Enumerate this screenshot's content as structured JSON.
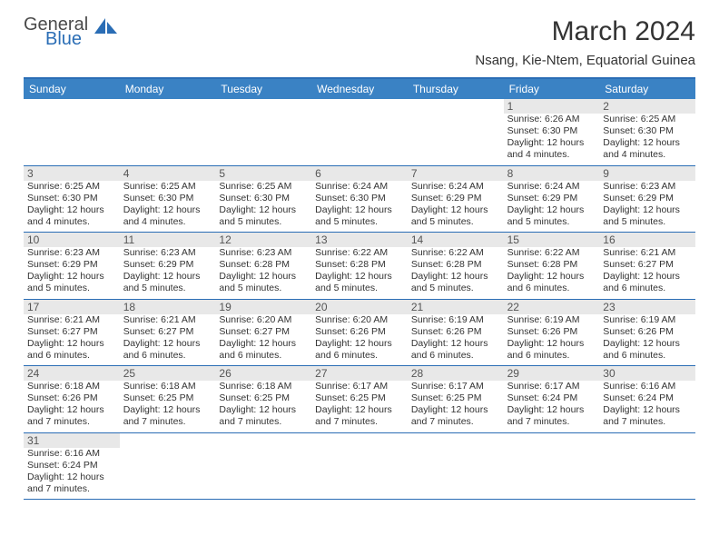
{
  "logo": {
    "text1": "General",
    "text2": "Blue"
  },
  "title": "March 2024",
  "subtitle": "Nsang, Kie-Ntem, Equatorial Guinea",
  "weekdays": [
    "Sunday",
    "Monday",
    "Tuesday",
    "Wednesday",
    "Thursday",
    "Friday",
    "Saturday"
  ],
  "colors": {
    "header_blue": "#3a82c4",
    "border_blue": "#2a6db5",
    "daynum_bg": "#e8e8e8",
    "text": "#333333"
  },
  "weeks": [
    [
      {
        "n": "",
        "sr": "",
        "ss": "",
        "dl": ""
      },
      {
        "n": "",
        "sr": "",
        "ss": "",
        "dl": ""
      },
      {
        "n": "",
        "sr": "",
        "ss": "",
        "dl": ""
      },
      {
        "n": "",
        "sr": "",
        "ss": "",
        "dl": ""
      },
      {
        "n": "",
        "sr": "",
        "ss": "",
        "dl": ""
      },
      {
        "n": "1",
        "sr": "Sunrise: 6:26 AM",
        "ss": "Sunset: 6:30 PM",
        "dl": "Daylight: 12 hours and 4 minutes."
      },
      {
        "n": "2",
        "sr": "Sunrise: 6:25 AM",
        "ss": "Sunset: 6:30 PM",
        "dl": "Daylight: 12 hours and 4 minutes."
      }
    ],
    [
      {
        "n": "3",
        "sr": "Sunrise: 6:25 AM",
        "ss": "Sunset: 6:30 PM",
        "dl": "Daylight: 12 hours and 4 minutes."
      },
      {
        "n": "4",
        "sr": "Sunrise: 6:25 AM",
        "ss": "Sunset: 6:30 PM",
        "dl": "Daylight: 12 hours and 4 minutes."
      },
      {
        "n": "5",
        "sr": "Sunrise: 6:25 AM",
        "ss": "Sunset: 6:30 PM",
        "dl": "Daylight: 12 hours and 5 minutes."
      },
      {
        "n": "6",
        "sr": "Sunrise: 6:24 AM",
        "ss": "Sunset: 6:30 PM",
        "dl": "Daylight: 12 hours and 5 minutes."
      },
      {
        "n": "7",
        "sr": "Sunrise: 6:24 AM",
        "ss": "Sunset: 6:29 PM",
        "dl": "Daylight: 12 hours and 5 minutes."
      },
      {
        "n": "8",
        "sr": "Sunrise: 6:24 AM",
        "ss": "Sunset: 6:29 PM",
        "dl": "Daylight: 12 hours and 5 minutes."
      },
      {
        "n": "9",
        "sr": "Sunrise: 6:23 AM",
        "ss": "Sunset: 6:29 PM",
        "dl": "Daylight: 12 hours and 5 minutes."
      }
    ],
    [
      {
        "n": "10",
        "sr": "Sunrise: 6:23 AM",
        "ss": "Sunset: 6:29 PM",
        "dl": "Daylight: 12 hours and 5 minutes."
      },
      {
        "n": "11",
        "sr": "Sunrise: 6:23 AM",
        "ss": "Sunset: 6:29 PM",
        "dl": "Daylight: 12 hours and 5 minutes."
      },
      {
        "n": "12",
        "sr": "Sunrise: 6:23 AM",
        "ss": "Sunset: 6:28 PM",
        "dl": "Daylight: 12 hours and 5 minutes."
      },
      {
        "n": "13",
        "sr": "Sunrise: 6:22 AM",
        "ss": "Sunset: 6:28 PM",
        "dl": "Daylight: 12 hours and 5 minutes."
      },
      {
        "n": "14",
        "sr": "Sunrise: 6:22 AM",
        "ss": "Sunset: 6:28 PM",
        "dl": "Daylight: 12 hours and 5 minutes."
      },
      {
        "n": "15",
        "sr": "Sunrise: 6:22 AM",
        "ss": "Sunset: 6:28 PM",
        "dl": "Daylight: 12 hours and 6 minutes."
      },
      {
        "n": "16",
        "sr": "Sunrise: 6:21 AM",
        "ss": "Sunset: 6:27 PM",
        "dl": "Daylight: 12 hours and 6 minutes."
      }
    ],
    [
      {
        "n": "17",
        "sr": "Sunrise: 6:21 AM",
        "ss": "Sunset: 6:27 PM",
        "dl": "Daylight: 12 hours and 6 minutes."
      },
      {
        "n": "18",
        "sr": "Sunrise: 6:21 AM",
        "ss": "Sunset: 6:27 PM",
        "dl": "Daylight: 12 hours and 6 minutes."
      },
      {
        "n": "19",
        "sr": "Sunrise: 6:20 AM",
        "ss": "Sunset: 6:27 PM",
        "dl": "Daylight: 12 hours and 6 minutes."
      },
      {
        "n": "20",
        "sr": "Sunrise: 6:20 AM",
        "ss": "Sunset: 6:26 PM",
        "dl": "Daylight: 12 hours and 6 minutes."
      },
      {
        "n": "21",
        "sr": "Sunrise: 6:19 AM",
        "ss": "Sunset: 6:26 PM",
        "dl": "Daylight: 12 hours and 6 minutes."
      },
      {
        "n": "22",
        "sr": "Sunrise: 6:19 AM",
        "ss": "Sunset: 6:26 PM",
        "dl": "Daylight: 12 hours and 6 minutes."
      },
      {
        "n": "23",
        "sr": "Sunrise: 6:19 AM",
        "ss": "Sunset: 6:26 PM",
        "dl": "Daylight: 12 hours and 6 minutes."
      }
    ],
    [
      {
        "n": "24",
        "sr": "Sunrise: 6:18 AM",
        "ss": "Sunset: 6:26 PM",
        "dl": "Daylight: 12 hours and 7 minutes."
      },
      {
        "n": "25",
        "sr": "Sunrise: 6:18 AM",
        "ss": "Sunset: 6:25 PM",
        "dl": "Daylight: 12 hours and 7 minutes."
      },
      {
        "n": "26",
        "sr": "Sunrise: 6:18 AM",
        "ss": "Sunset: 6:25 PM",
        "dl": "Daylight: 12 hours and 7 minutes."
      },
      {
        "n": "27",
        "sr": "Sunrise: 6:17 AM",
        "ss": "Sunset: 6:25 PM",
        "dl": "Daylight: 12 hours and 7 minutes."
      },
      {
        "n": "28",
        "sr": "Sunrise: 6:17 AM",
        "ss": "Sunset: 6:25 PM",
        "dl": "Daylight: 12 hours and 7 minutes."
      },
      {
        "n": "29",
        "sr": "Sunrise: 6:17 AM",
        "ss": "Sunset: 6:24 PM",
        "dl": "Daylight: 12 hours and 7 minutes."
      },
      {
        "n": "30",
        "sr": "Sunrise: 6:16 AM",
        "ss": "Sunset: 6:24 PM",
        "dl": "Daylight: 12 hours and 7 minutes."
      }
    ],
    [
      {
        "n": "31",
        "sr": "Sunrise: 6:16 AM",
        "ss": "Sunset: 6:24 PM",
        "dl": "Daylight: 12 hours and 7 minutes."
      },
      {
        "n": "",
        "sr": "",
        "ss": "",
        "dl": ""
      },
      {
        "n": "",
        "sr": "",
        "ss": "",
        "dl": ""
      },
      {
        "n": "",
        "sr": "",
        "ss": "",
        "dl": ""
      },
      {
        "n": "",
        "sr": "",
        "ss": "",
        "dl": ""
      },
      {
        "n": "",
        "sr": "",
        "ss": "",
        "dl": ""
      },
      {
        "n": "",
        "sr": "",
        "ss": "",
        "dl": ""
      }
    ]
  ]
}
